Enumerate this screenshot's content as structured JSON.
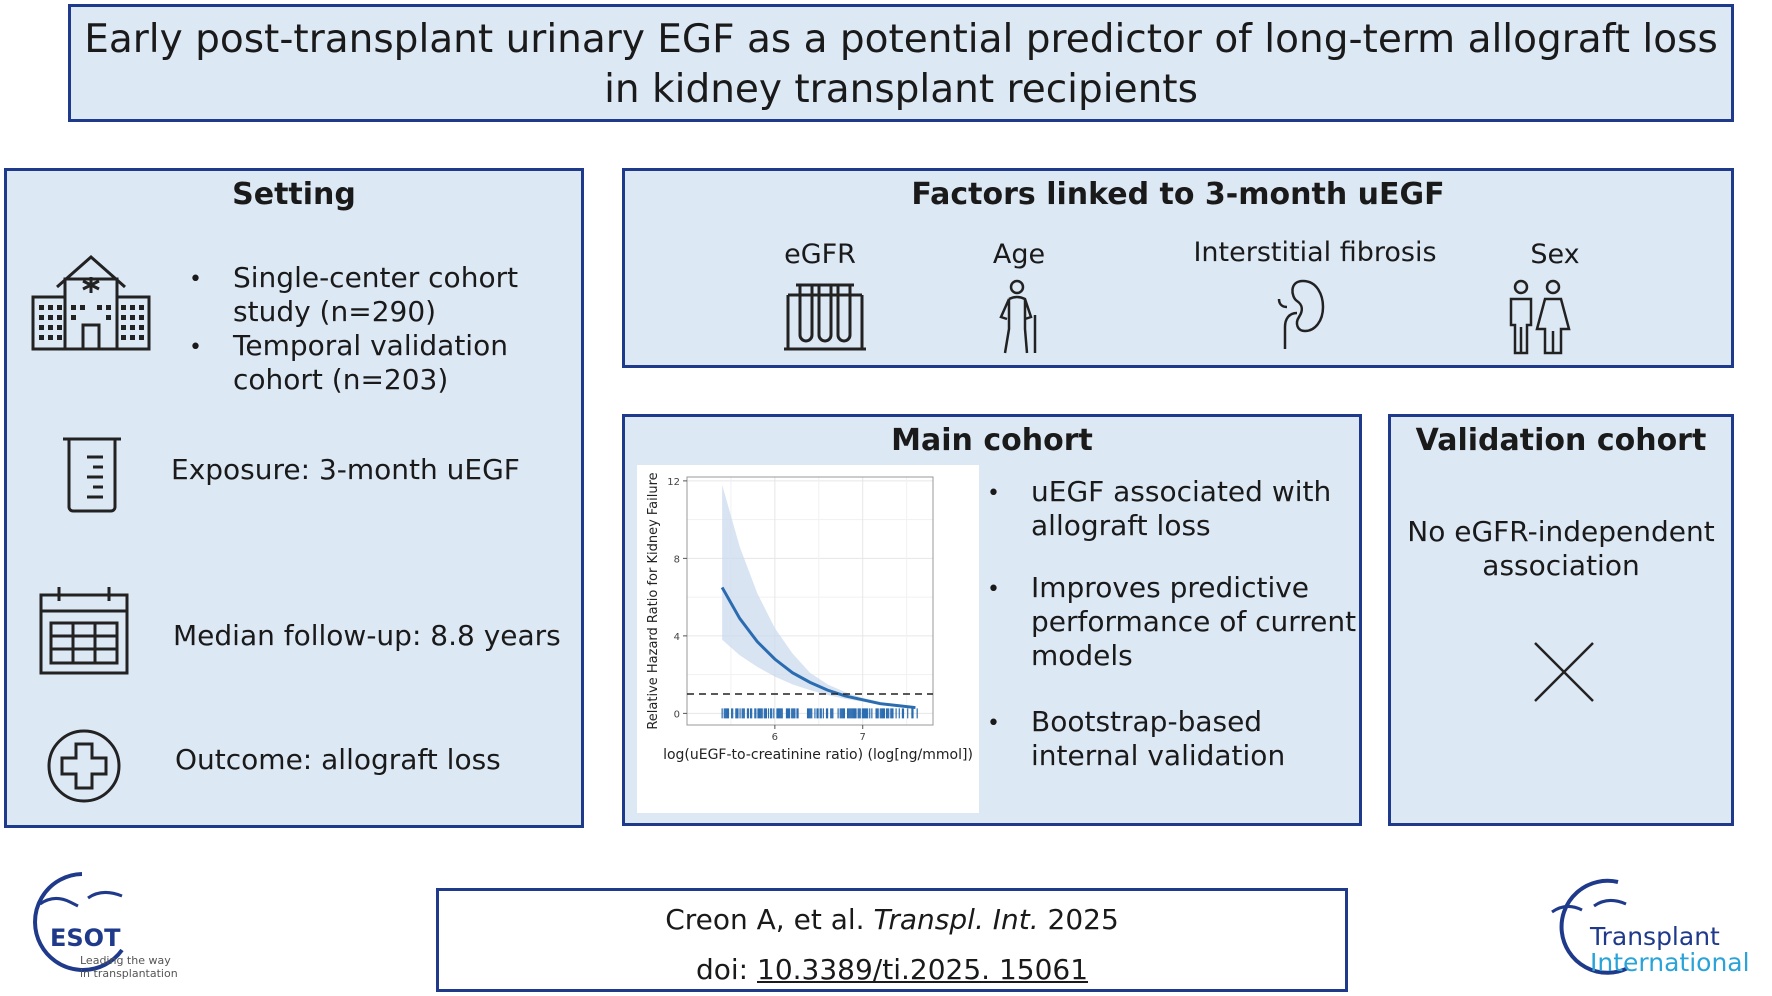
{
  "title": {
    "line1": "Early post-transplant urinary EGF as a potential predictor of long-term allograft loss",
    "line2": "in kidney transplant recipients"
  },
  "setting": {
    "heading": "Setting",
    "bullet1": [
      "Single-center cohort",
      "study (n=290)"
    ],
    "bullet2": [
      "Temporal validation",
      "cohort (n=203)"
    ],
    "exposure": "Exposure: 3-month uEGF",
    "followup": "Median follow-up: 8.8 years",
    "outcome": "Outcome: allograft loss",
    "icons": [
      "hospital-icon",
      "beaker-icon",
      "calendar-icon",
      "medical-cross-icon"
    ]
  },
  "factors": {
    "heading": "Factors linked to 3-month uEGF",
    "items": [
      {
        "label": "eGFR",
        "icon": "test-tubes-icon"
      },
      {
        "label": "Age",
        "icon": "elderly-person-icon"
      },
      {
        "label": "Interstitial fibrosis",
        "icon": "kidney-icon"
      },
      {
        "label": "Sex",
        "icon": "male-female-icon"
      }
    ]
  },
  "main": {
    "heading": "Main cohort",
    "bullets": [
      [
        "uEGF associated with",
        "allograft loss"
      ],
      [
        "Improves predictive",
        "performance of current",
        "models"
      ],
      [
        "Bootstrap-based",
        "internal validation"
      ]
    ]
  },
  "validation": {
    "heading": "Validation cohort",
    "text": [
      "No eGFR-independent",
      "association"
    ],
    "icon": "cross-mark-icon"
  },
  "citation": {
    "authors": "Creon A, et al.",
    "journal": "Transpl. Int.",
    "year": "2025",
    "doi_label": "doi:",
    "doi": "10.3389/ti.2025. 15061"
  },
  "logos": {
    "esot_name": "ESOT",
    "esot_tagline1": "Leading the way",
    "esot_tagline2": "in transplantation",
    "ti_line1": "Transplant",
    "ti_line2": "International"
  },
  "colors": {
    "border": "#1f3a8a",
    "panel": "#dde8f5",
    "curve": "#2b6cb0",
    "band": "#c9d9ec"
  },
  "chart_data": {
    "type": "line",
    "xlabel": "log(uEGF-to-creatinine ratio) (log[ng/mmol])",
    "ylabel": "Relative Hazard Ratio for Kidney Failure",
    "xlim": [
      5.0,
      7.8
    ],
    "ylim": [
      -0.6,
      12.2
    ],
    "xticks": [
      6,
      7
    ],
    "yticks": [
      0,
      4,
      8,
      12
    ],
    "reference_line": 1,
    "series": [
      {
        "name": "HR",
        "x": [
          5.4,
          5.6,
          5.8,
          6.0,
          6.2,
          6.4,
          6.6,
          6.8,
          7.0,
          7.2,
          7.4,
          7.6
        ],
        "y": [
          6.5,
          4.9,
          3.7,
          2.8,
          2.1,
          1.6,
          1.2,
          0.9,
          0.7,
          0.5,
          0.4,
          0.3
        ]
      },
      {
        "name": "upper",
        "x": [
          5.4,
          5.6,
          5.8,
          6.0,
          6.2,
          6.4,
          6.6,
          6.8,
          7.0,
          7.2,
          7.4,
          7.6
        ],
        "y": [
          11.8,
          8.6,
          6.2,
          4.4,
          3.1,
          2.1,
          1.5,
          1.1,
          0.8,
          0.6,
          0.45,
          0.35
        ]
      },
      {
        "name": "lower",
        "x": [
          5.4,
          5.6,
          5.8,
          6.0,
          6.2,
          6.4,
          6.6,
          6.8,
          7.0,
          7.2,
          7.4,
          7.6
        ],
        "y": [
          3.8,
          3.0,
          2.4,
          1.9,
          1.5,
          1.2,
          0.95,
          0.75,
          0.6,
          0.45,
          0.35,
          0.25
        ]
      }
    ]
  }
}
